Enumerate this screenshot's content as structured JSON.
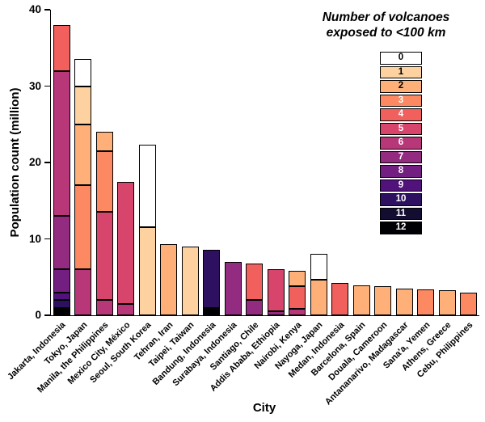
{
  "legend": {
    "title_lines": [
      "Number of volcanoes",
      "exposed to <100 km"
    ],
    "entries": [
      {
        "count": 0,
        "color": "#ffffff",
        "text_color": "#000000"
      },
      {
        "count": 1,
        "color": "#fdd2a0",
        "text_color": "#000000"
      },
      {
        "count": 2,
        "color": "#feb078",
        "text_color": "#000000"
      },
      {
        "count": 3,
        "color": "#fc8961",
        "text_color": "#ffffff"
      },
      {
        "count": 4,
        "color": "#f1605d",
        "text_color": "#ffffff"
      },
      {
        "count": 5,
        "color": "#d8456c",
        "text_color": "#ffffff"
      },
      {
        "count": 6,
        "color": "#b73779",
        "text_color": "#ffffff"
      },
      {
        "count": 7,
        "color": "#932b80",
        "text_color": "#ffffff"
      },
      {
        "count": 8,
        "color": "#721f81",
        "text_color": "#ffffff"
      },
      {
        "count": 9,
        "color": "#51127c",
        "text_color": "#ffffff"
      },
      {
        "count": 10,
        "color": "#2d1160",
        "text_color": "#ffffff"
      },
      {
        "count": 11,
        "color": "#120d31",
        "text_color": "#ffffff"
      },
      {
        "count": 12,
        "color": "#000004",
        "text_color": "#ffffff"
      }
    ]
  },
  "chart_data": {
    "type": "bar",
    "stacked": true,
    "title": "",
    "xlabel": "City",
    "ylabel": "Population count (million)",
    "ylim": [
      0,
      40
    ],
    "yticks": [
      0,
      10,
      20,
      30,
      40
    ],
    "unit": "million people",
    "legend_title": "Number of volcanoes exposed to <100 km",
    "legend_values": [
      0,
      1,
      2,
      3,
      4,
      5,
      6,
      7,
      8,
      9,
      10,
      11,
      12
    ],
    "categories": [
      "Jakarta, Indonesia",
      "Tokyo, Japan",
      "Manila, the Philippines",
      "Mexico City, México",
      "Seoul, South Korea",
      "Tehran, Iran",
      "Taipei, Taiwan",
      "Bandung, Indonesia",
      "Surabaya, Indonesia",
      "Santiago, Chile",
      "Addis Ababa, Ethiopia",
      "Nairobi, Kenya",
      "Nayoga, Japan",
      "Medan, Indonesia",
      "Barcelona, Spain",
      "Douala, Cameroon",
      "Antananarivo, Madagascar",
      "Sana'a, Yemen",
      "Athens, Greece",
      "Cebu, Philippines"
    ],
    "bars": [
      {
        "city": "Jakarta, Indonesia",
        "total": 38.0,
        "segments": [
          {
            "volcanoes": 12,
            "value": 1.0
          },
          {
            "volcanoes": 10,
            "value": 1.0
          },
          {
            "volcanoes": 9,
            "value": 1.0
          },
          {
            "volcanoes": 8,
            "value": 3.0
          },
          {
            "volcanoes": 7,
            "value": 7.0
          },
          {
            "volcanoes": 6,
            "value": 19.0
          },
          {
            "volcanoes": 4,
            "value": 6.0
          }
        ]
      },
      {
        "city": "Tokyo, Japan",
        "total": 33.5,
        "segments": [
          {
            "volcanoes": 6,
            "value": 6.0
          },
          {
            "volcanoes": 3,
            "value": 11.0
          },
          {
            "volcanoes": 2,
            "value": 8.0
          },
          {
            "volcanoes": 1,
            "value": 5.0
          },
          {
            "volcanoes": 0,
            "value": 3.5
          }
        ]
      },
      {
        "city": "Manila, the Philippines",
        "total": 24.0,
        "segments": [
          {
            "volcanoes": 6,
            "value": 2.0
          },
          {
            "volcanoes": 5,
            "value": 11.5
          },
          {
            "volcanoes": 3,
            "value": 8.0
          },
          {
            "volcanoes": 2,
            "value": 2.5
          }
        ]
      },
      {
        "city": "Mexico City, México",
        "total": 17.5,
        "segments": [
          {
            "volcanoes": 6,
            "value": 1.5
          },
          {
            "volcanoes": 5,
            "value": 16.0
          }
        ]
      },
      {
        "city": "Seoul, South Korea",
        "total": 22.3,
        "segments": [
          {
            "volcanoes": 1,
            "value": 11.5
          },
          {
            "volcanoes": 0,
            "value": 10.8
          }
        ]
      },
      {
        "city": "Tehran, Iran",
        "total": 9.3,
        "segments": [
          {
            "volcanoes": 2,
            "value": 9.3
          }
        ]
      },
      {
        "city": "Taipei, Taiwan",
        "total": 9.0,
        "segments": [
          {
            "volcanoes": 1,
            "value": 9.0
          }
        ]
      },
      {
        "city": "Bandung, Indonesia",
        "total": 8.6,
        "segments": [
          {
            "volcanoes": 12,
            "value": 1.0
          },
          {
            "volcanoes": 10,
            "value": 7.6
          }
        ]
      },
      {
        "city": "Surabaya, Indonesia",
        "total": 7.0,
        "segments": [
          {
            "volcanoes": 7,
            "value": 7.0
          }
        ]
      },
      {
        "city": "Santiago, Chile",
        "total": 6.8,
        "segments": [
          {
            "volcanoes": 7,
            "value": 2.0
          },
          {
            "volcanoes": 4,
            "value": 4.8
          }
        ]
      },
      {
        "city": "Addis Ababa, Ethiopia",
        "total": 6.0,
        "segments": [
          {
            "volcanoes": 7,
            "value": 0.5
          },
          {
            "volcanoes": 5,
            "value": 5.5
          }
        ]
      },
      {
        "city": "Nairobi, Kenya",
        "total": 5.8,
        "segments": [
          {
            "volcanoes": 6,
            "value": 0.8
          },
          {
            "volcanoes": 4,
            "value": 3.0
          },
          {
            "volcanoes": 2,
            "value": 2.0
          }
        ]
      },
      {
        "city": "Nayoga, Japan",
        "total": 8.0,
        "segments": [
          {
            "volcanoes": 2,
            "value": 4.7
          },
          {
            "volcanoes": 0,
            "value": 3.3
          }
        ]
      },
      {
        "city": "Medan, Indonesia",
        "total": 4.2,
        "segments": [
          {
            "volcanoes": 4,
            "value": 4.2
          }
        ]
      },
      {
        "city": "Barcelona, Spain",
        "total": 3.9,
        "segments": [
          {
            "volcanoes": 2,
            "value": 3.9
          }
        ]
      },
      {
        "city": "Douala, Cameroon",
        "total": 3.8,
        "segments": [
          {
            "volcanoes": 2,
            "value": 3.8
          }
        ]
      },
      {
        "city": "Antananarivo, Madagascar",
        "total": 3.5,
        "segments": [
          {
            "volcanoes": 2,
            "value": 3.5
          }
        ]
      },
      {
        "city": "Sana'a, Yemen",
        "total": 3.4,
        "segments": [
          {
            "volcanoes": 3,
            "value": 3.4
          }
        ]
      },
      {
        "city": "Athens, Greece",
        "total": 3.3,
        "segments": [
          {
            "volcanoes": 2,
            "value": 3.3
          }
        ]
      },
      {
        "city": "Cebu, Philippines",
        "total": 3.0,
        "segments": [
          {
            "volcanoes": 3,
            "value": 3.0
          }
        ]
      }
    ]
  }
}
